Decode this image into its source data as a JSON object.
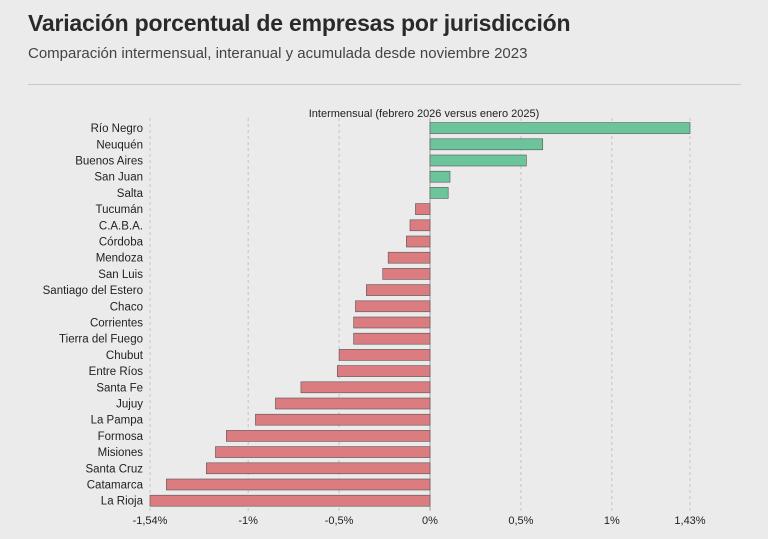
{
  "header": {
    "title": "Variación porcentual de empresas por jurisdicción",
    "subtitle": "Comparación intermensual, interanual y acumulada desde noviembre 2023"
  },
  "chart_data": {
    "type": "bar",
    "orientation": "horizontal",
    "title": "Intermensual (febrero 2026 versus enero 2025)",
    "categories": [
      "Río Negro",
      "Neuquén",
      "Buenos Aires",
      "San Juan",
      "Salta",
      "Tucumán",
      "C.A.B.A.",
      "Córdoba",
      "Mendoza",
      "San Luis",
      "Santiago del Estero",
      "Chaco",
      "Corrientes",
      "Tierra del Fuego",
      "Chubut",
      "Entre Ríos",
      "Santa Fe",
      "Jujuy",
      "La Pampa",
      "Formosa",
      "Misiones",
      "Santa Cruz",
      "Catamarca",
      "La Rioja"
    ],
    "values": [
      1.43,
      0.62,
      0.53,
      0.11,
      0.1,
      -0.08,
      -0.11,
      -0.13,
      -0.23,
      -0.26,
      -0.35,
      -0.41,
      -0.42,
      -0.42,
      -0.5,
      -0.51,
      -0.71,
      -0.85,
      -0.96,
      -1.12,
      -1.18,
      -1.23,
      -1.45,
      -1.54
    ],
    "xlim": [
      -1.54,
      1.43
    ],
    "xticks": [
      -1.54,
      -1,
      -0.5,
      0,
      0.5,
      1,
      1.43
    ],
    "xtick_labels": [
      "-1,54%",
      "-1%",
      "-0,5%",
      "0%",
      "0,5%",
      "1%",
      "1,43%"
    ],
    "colors": {
      "positive": "#6cc59a",
      "negative": "#db7c80",
      "edge": "#555555"
    },
    "grid": true
  }
}
